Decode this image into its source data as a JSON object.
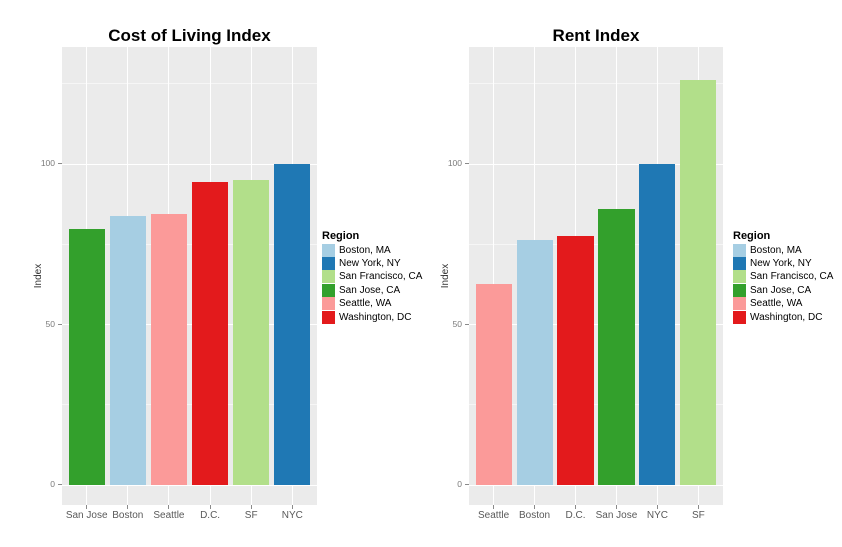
{
  "figure": {
    "background": "#ffffff",
    "panel_background": "#ebebeb",
    "grid_major_color": "#ffffff",
    "axis_text_color": "#7a7a7a",
    "axis_label_color": "#595959",
    "title_color": "#000000"
  },
  "legend": {
    "title": "Region",
    "position": "right",
    "items": [
      {
        "label": "Boston, MA",
        "color": "#a6cee3"
      },
      {
        "label": "New York, NY",
        "color": "#1f78b4"
      },
      {
        "label": "San Francisco, CA",
        "color": "#b2df8a"
      },
      {
        "label": "San Jose, CA",
        "color": "#33a02c"
      },
      {
        "label": "Seattle, WA",
        "color": "#fb9a99"
      },
      {
        "label": "Washington, DC",
        "color": "#e31a1c"
      }
    ]
  },
  "chart_data": [
    {
      "type": "bar",
      "title": "Cost of Living Index",
      "xlabel": "",
      "ylabel": "Index",
      "ylim": [
        -6.3,
        136.5
      ],
      "yticks": [
        0,
        50,
        100
      ],
      "ytick_labels": [
        "0",
        "50",
        "100"
      ],
      "grid_major": [
        0,
        50,
        100
      ],
      "grid_minor": [
        25,
        75,
        125
      ],
      "grid": "on",
      "legend_position": "right",
      "categories": [
        "San Jose",
        "Boston",
        "Seattle",
        "D.C.",
        "SF",
        "NYC"
      ],
      "bars": [
        {
          "category": "San Jose",
          "region": "San Jose, CA",
          "value": 79.6,
          "color": "#33a02c"
        },
        {
          "category": "Boston",
          "region": "Boston, MA",
          "value": 83.7,
          "color": "#a6cee3"
        },
        {
          "category": "Seattle",
          "region": "Seattle, WA",
          "value": 84.3,
          "color": "#fb9a99"
        },
        {
          "category": "D.C.",
          "region": "Washington, DC",
          "value": 94.2,
          "color": "#e31a1c"
        },
        {
          "category": "SF",
          "region": "San Francisco, CA",
          "value": 94.9,
          "color": "#b2df8a"
        },
        {
          "category": "NYC",
          "region": "New York, NY",
          "value": 100.0,
          "color": "#1f78b4"
        }
      ]
    },
    {
      "type": "bar",
      "title": "Rent Index",
      "xlabel": "",
      "ylabel": "Index",
      "ylim": [
        -6.3,
        136.5
      ],
      "yticks": [
        0,
        50,
        100
      ],
      "ytick_labels": [
        "0",
        "50",
        "100"
      ],
      "grid_major": [
        0,
        50,
        100
      ],
      "grid_minor": [
        25,
        75,
        125
      ],
      "grid": "on",
      "legend_position": "right",
      "categories": [
        "Seattle",
        "Boston",
        "D.C.",
        "San Jose",
        "NYC",
        "SF"
      ],
      "bars": [
        {
          "category": "Seattle",
          "region": "Seattle, WA",
          "value": 62.5,
          "color": "#fb9a99"
        },
        {
          "category": "Boston",
          "region": "Boston, MA",
          "value": 76.2,
          "color": "#a6cee3"
        },
        {
          "category": "D.C.",
          "region": "Washington, DC",
          "value": 77.4,
          "color": "#e31a1c"
        },
        {
          "category": "San Jose",
          "region": "San Jose, CA",
          "value": 85.9,
          "color": "#33a02c"
        },
        {
          "category": "NYC",
          "region": "New York, NY",
          "value": 100.0,
          "color": "#1f78b4"
        },
        {
          "category": "SF",
          "region": "San Francisco, CA",
          "value": 126.0,
          "color": "#b2df8a"
        }
      ]
    }
  ]
}
